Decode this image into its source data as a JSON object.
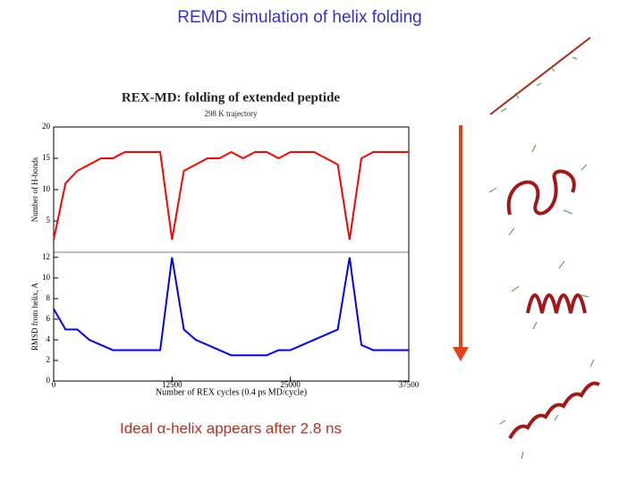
{
  "slide": {
    "title": "REMD simulation of helix folding",
    "caption": "Ideal α-helix appears after 2.8 ns"
  },
  "chart_data": [
    {
      "type": "line",
      "title": "REX-MD: folding of extended peptide",
      "subtitle": "298 K trajectory",
      "y_label": "Number of H-bonds",
      "color": "#ff0000",
      "x": [
        0,
        1250,
        2500,
        3750,
        5000,
        6250,
        7500,
        8750,
        10000,
        11250,
        12500,
        13750,
        15000,
        16250,
        17500,
        18750,
        20000,
        21250,
        22500,
        23750,
        25000,
        26250,
        27500,
        28750,
        30000,
        31250,
        32500,
        33750,
        35000,
        36250,
        37500
      ],
      "values": [
        2,
        11,
        13,
        14,
        15,
        15,
        16,
        16,
        16,
        16,
        2,
        13,
        14,
        15,
        15,
        16,
        15,
        16,
        16,
        15,
        16,
        16,
        16,
        15,
        14,
        2,
        15,
        16,
        16,
        16,
        16
      ],
      "xlim": [
        0,
        37500
      ],
      "ylim": [
        0,
        20
      ],
      "yticks": [
        5,
        10,
        15,
        20
      ]
    },
    {
      "type": "line",
      "y_label": "RMSD from helix, A",
      "x_label": "Number of REX cycles (0.4 ps MD/cycle)",
      "color": "#0000ff",
      "x": [
        0,
        1250,
        2500,
        3750,
        5000,
        6250,
        7500,
        8750,
        10000,
        11250,
        12500,
        13750,
        15000,
        16250,
        17500,
        18750,
        20000,
        21250,
        22500,
        23750,
        25000,
        26250,
        27500,
        28750,
        30000,
        31250,
        32500,
        33750,
        35000,
        36250,
        37500
      ],
      "values": [
        7,
        5,
        5,
        4,
        3.5,
        3,
        3,
        3,
        3,
        3,
        12,
        5,
        4,
        3.5,
        3,
        2.5,
        2.5,
        2.5,
        2.5,
        3,
        3,
        3.5,
        4,
        4.5,
        5,
        12,
        3.5,
        3,
        3,
        3,
        3
      ],
      "xlim": [
        0,
        37500
      ],
      "ylim": [
        0,
        12.5
      ],
      "xticks": [
        0,
        12500,
        25000,
        37500
      ],
      "yticks": [
        0,
        2,
        4,
        6,
        8,
        10,
        12
      ]
    }
  ]
}
